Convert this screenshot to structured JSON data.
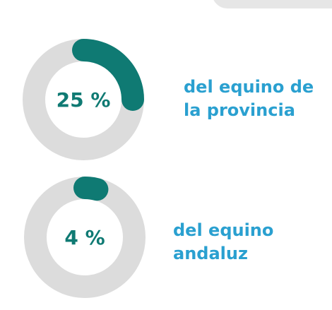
{
  "chart_data": [
    {
      "type": "donut",
      "values": [
        25
      ],
      "value_labels": [
        "25 %"
      ],
      "label": "del equino de la provincia",
      "color": "#0f7a73",
      "track_color": "#dcdcdc"
    },
    {
      "type": "donut",
      "values": [
        4
      ],
      "value_labels": [
        "4 %"
      ],
      "label": "del equino andaluz",
      "color": "#0f7a73",
      "track_color": "#dcdcdc"
    }
  ]
}
